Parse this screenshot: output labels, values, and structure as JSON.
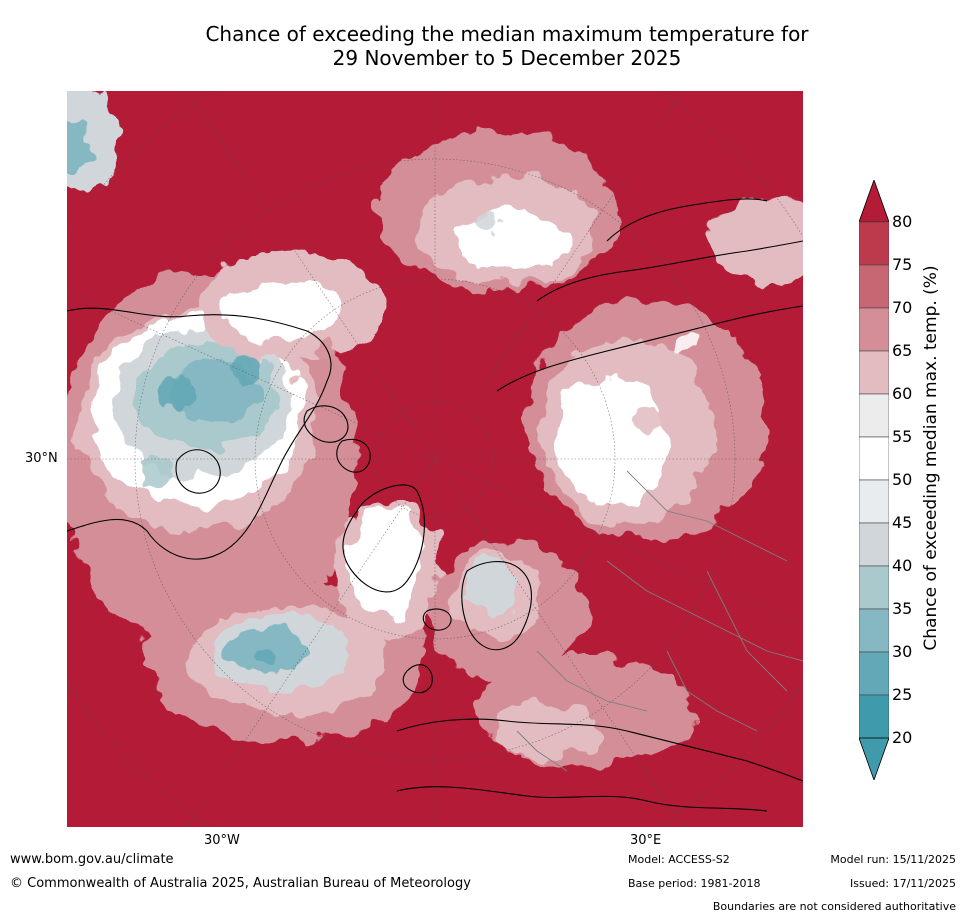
{
  "title": {
    "line1": "Chance of exceeding the median maximum temperature for",
    "line2": "29 November to 5 December 2025"
  },
  "map": {
    "projection": "north-polar-stereographic",
    "lat_label": "30°N",
    "lon_labels": [
      "30°W",
      "30°E"
    ],
    "colors": {
      "ocean_dominant": "#b31b37",
      "land_outline": "#000000",
      "border": "#7f7f7f"
    },
    "regions": [
      {
        "name": "north-america-cool-anomaly",
        "band": "25-35"
      },
      {
        "name": "greenland-near-median",
        "band": "45-55"
      },
      {
        "name": "western-siberia-near-median",
        "band": "45-60"
      },
      {
        "name": "scandinavia-near-median",
        "band": "40-55"
      },
      {
        "name": "north-atlantic-cool-patch",
        "band": "25-40"
      },
      {
        "name": "arctic-ocean-warm",
        "band": "80+"
      }
    ]
  },
  "colorbar": {
    "title": "Chance of exceeding median max. temp. (%)",
    "ticks": [
      "80",
      "75",
      "70",
      "65",
      "60",
      "55",
      "50",
      "45",
      "40",
      "35",
      "30",
      "25",
      "20"
    ],
    "colors_top_to_bottom": [
      "#b31b37",
      "#bd3a4c",
      "#c66773",
      "#d48e97",
      "#e2bcc1",
      "#ececec",
      "#ffffff",
      "#e8ecee",
      "#d0d6d9",
      "#a9c9cd",
      "#86b8c3",
      "#62a8b6",
      "#3f9aac",
      "#3f9aac"
    ],
    "extend": "both"
  },
  "footer": {
    "website": "www.bom.gov.au/climate",
    "copyright": "© Commonwealth of Australia 2025, Australian Bureau of Meteorology",
    "model": "Model: ACCESS-S2",
    "base_period": "Base period: 1981-2018",
    "model_run": "Model run: 15/11/2025",
    "issued": "Issued: 17/11/2025",
    "disclaimer": "Boundaries are not considered authoritative"
  }
}
